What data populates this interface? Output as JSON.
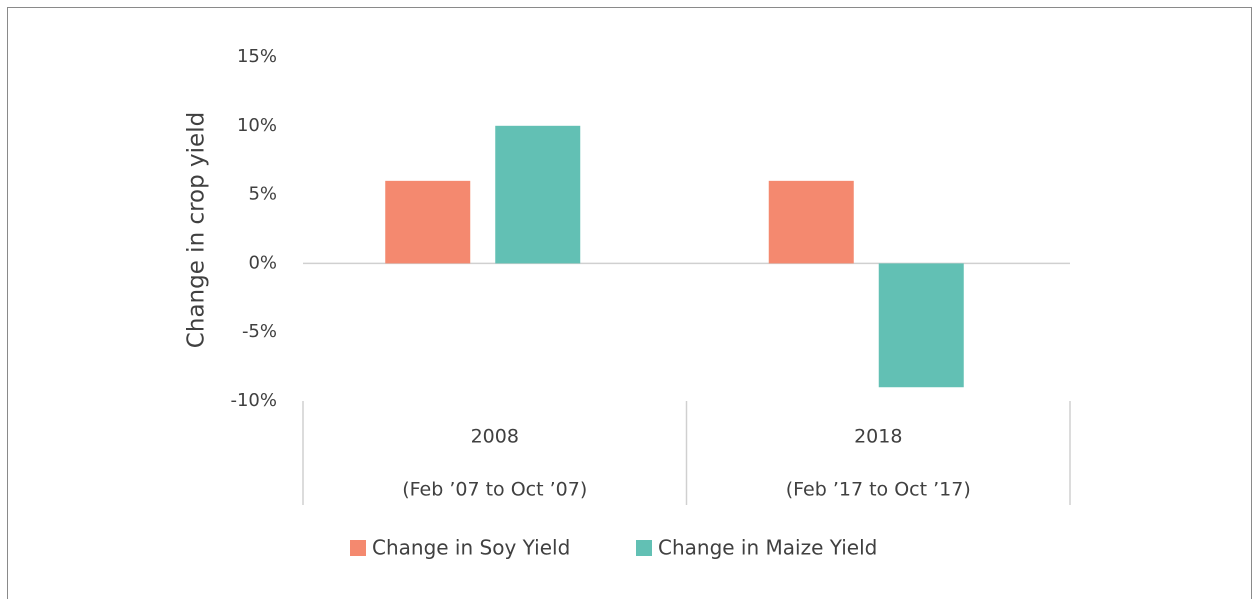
{
  "chart_data": {
    "type": "bar",
    "y_label": "Change in crop yield",
    "categories": [
      "2008",
      "2018"
    ],
    "periods": [
      "(Feb ’07 to Oct ’07)",
      "(Feb ’17 to Oct ’17)"
    ],
    "series": [
      {
        "name": "Change in Soy Yield",
        "color": "#f4896f",
        "values": [
          6,
          6
        ]
      },
      {
        "name": "Change in Maize Yield",
        "color": "#62c0b4",
        "values": [
          10,
          -9
        ]
      }
    ],
    "ylim": [
      -10,
      15
    ],
    "yticks": [
      {
        "value": -10,
        "label": "-10%"
      },
      {
        "value": -5,
        "label": "-5%"
      },
      {
        "value": 0,
        "label": "0%"
      },
      {
        "value": 5,
        "label": "5%"
      },
      {
        "value": 10,
        "label": "10%"
      },
      {
        "value": 15,
        "label": "15%"
      }
    ],
    "legend": "bottom"
  }
}
